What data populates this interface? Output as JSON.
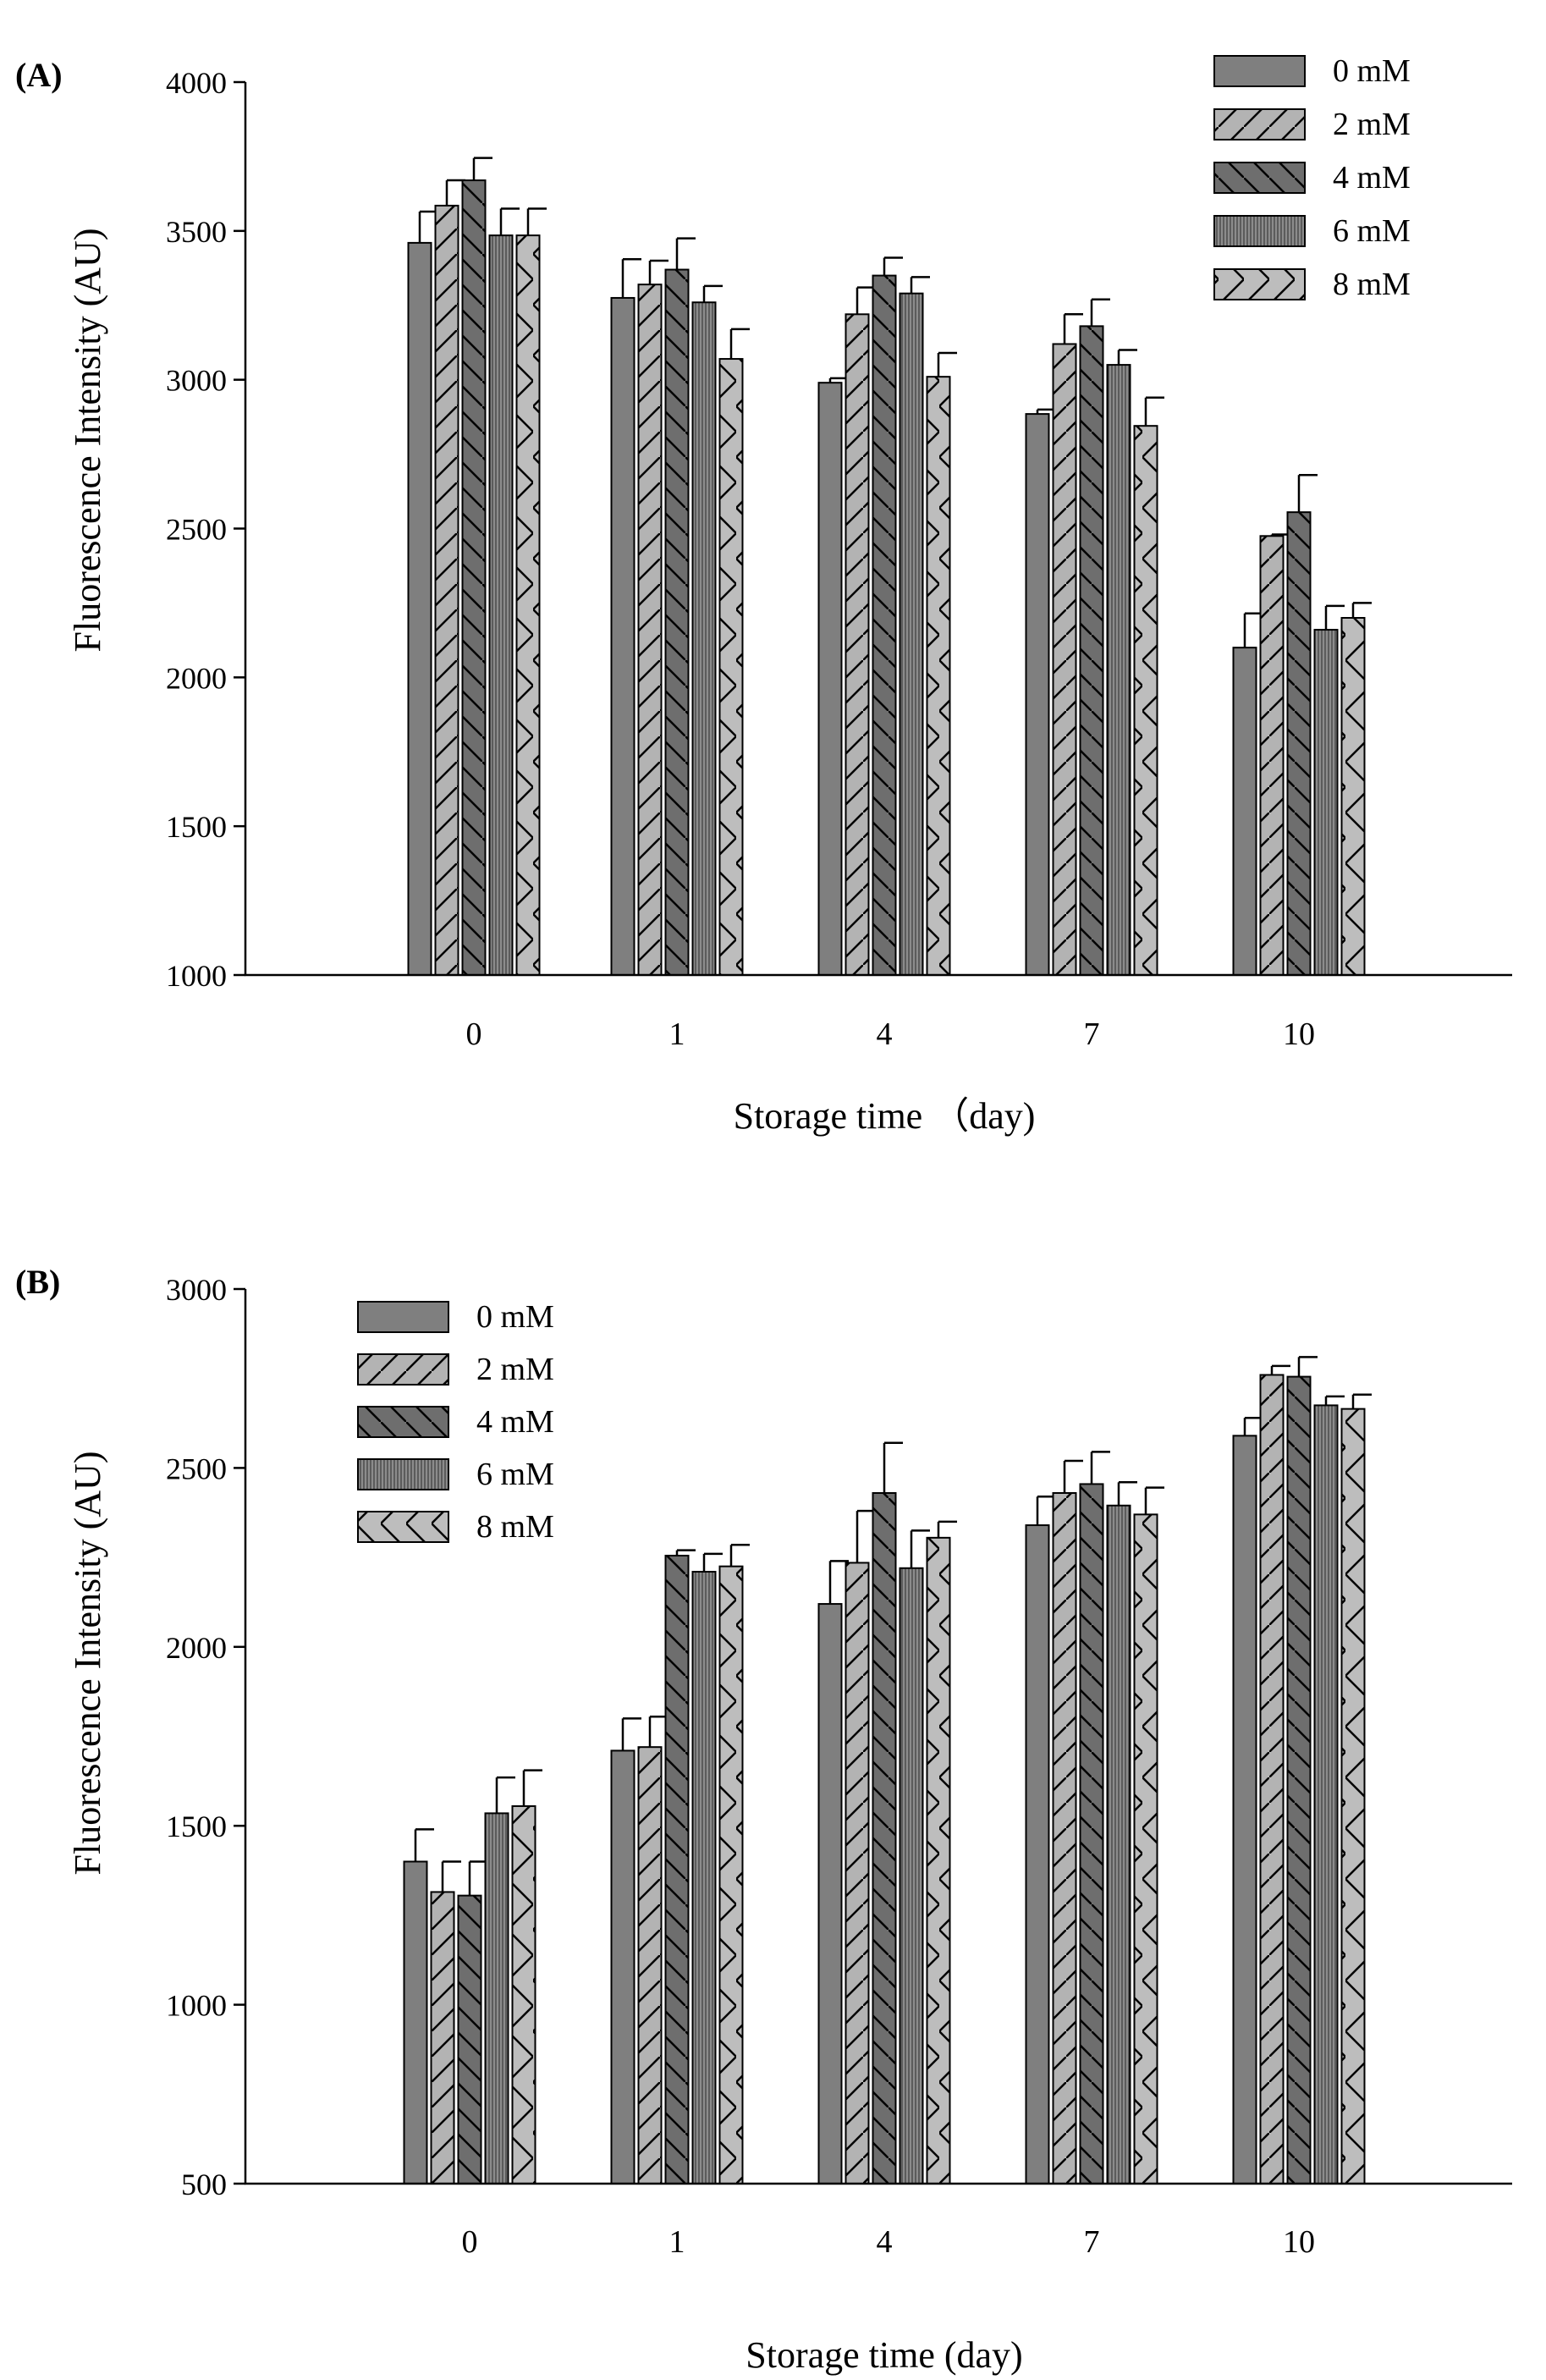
{
  "chart_data": [
    {
      "panel_label": "(A)",
      "type": "bar",
      "title": "",
      "xlabel": "Storage time （day)",
      "ylabel": "Fluorescence Intensity (AU)",
      "ylim": [
        1000,
        4000
      ],
      "yticks": [
        "1000",
        "1500",
        "2000",
        "2500",
        "3000",
        "3500",
        "4000"
      ],
      "categories": [
        "0",
        "1",
        "4",
        "7",
        "10"
      ],
      "legend_position": "top-right",
      "series": [
        {
          "name": "0 mM",
          "values": [
            3460,
            3275,
            2990,
            2885,
            2100
          ],
          "errors": [
            105,
            130,
            15,
            15,
            115
          ]
        },
        {
          "name": "2 mM",
          "values": [
            3585,
            3320,
            3220,
            3120,
            2475
          ],
          "errors": [
            85,
            80,
            90,
            100,
            5
          ]
        },
        {
          "name": "4 mM",
          "values": [
            3670,
            3370,
            3350,
            3180,
            2555
          ],
          "errors": [
            75,
            105,
            60,
            90,
            125
          ]
        },
        {
          "name": "6 mM",
          "values": [
            3485,
            3260,
            3290,
            3050,
            2160
          ],
          "errors": [
            90,
            55,
            55,
            50,
            80
          ]
        },
        {
          "name": "8 mM",
          "values": [
            3485,
            3070,
            3010,
            2845,
            2200
          ],
          "errors": [
            90,
            100,
            80,
            95,
            50
          ]
        }
      ]
    },
    {
      "panel_label": "(B)",
      "type": "bar",
      "title": "",
      "xlabel": "Storage time (day)",
      "ylabel": "Fluorescence Intensity (AU)",
      "ylim": [
        500,
        3000
      ],
      "yticks": [
        "500",
        "1000",
        "1500",
        "2000",
        "2500",
        "3000"
      ],
      "categories": [
        "0",
        "1",
        "4",
        "7",
        "10"
      ],
      "legend_position": "top-left",
      "series": [
        {
          "name": "0 mM",
          "values": [
            1400,
            1710,
            2120,
            2340,
            2590
          ],
          "errors": [
            90,
            90,
            120,
            80,
            50
          ]
        },
        {
          "name": "2 mM",
          "values": [
            1315,
            1720,
            2235,
            2430,
            2760
          ],
          "errors": [
            85,
            85,
            145,
            90,
            25
          ]
        },
        {
          "name": "4 mM",
          "values": [
            1305,
            2255,
            2430,
            2455,
            2755
          ],
          "errors": [
            95,
            15,
            140,
            90,
            55
          ]
        },
        {
          "name": "6 mM",
          "values": [
            1535,
            2210,
            2220,
            2395,
            2675
          ],
          "errors": [
            100,
            50,
            105,
            65,
            25
          ]
        },
        {
          "name": "8 mM",
          "values": [
            1555,
            2225,
            2305,
            2370,
            2665
          ],
          "errors": [
            100,
            60,
            45,
            75,
            40
          ]
        }
      ]
    }
  ],
  "colors": {
    "s0": "#7f7f7f",
    "s1": "#b3b3b3",
    "s2": "#6e6e6e",
    "s3": "#8c8c8c",
    "s4": "#bdbdbd"
  }
}
